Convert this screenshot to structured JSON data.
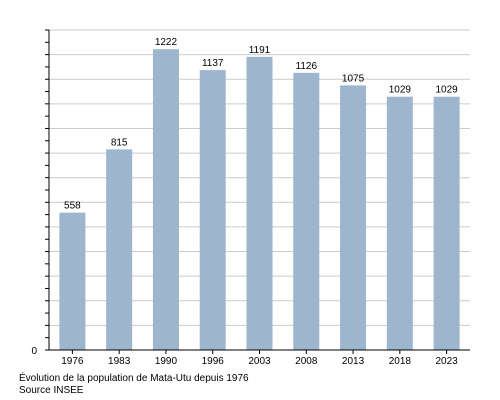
{
  "chart_data": {
    "type": "bar",
    "categories": [
      "1976",
      "1983",
      "1990",
      "1996",
      "2003",
      "2008",
      "2013",
      "2018",
      "2023"
    ],
    "values": [
      558,
      815,
      1222,
      1137,
      1191,
      1126,
      1075,
      1029,
      1029
    ],
    "value_labels": [
      "558",
      "815",
      "1222",
      "1137",
      "1191",
      "1126",
      "1075",
      "1029",
      "1029"
    ],
    "ylim": [
      0,
      1300
    ],
    "y_tick_labels": [
      "0"
    ],
    "grid": true,
    "legend": "none",
    "bar_color": "#9db5cd",
    "grid_color": "#cccccc",
    "caption": "Évolution de la population de Mata-Utu depuis 1976",
    "source": "Source INSEE"
  }
}
